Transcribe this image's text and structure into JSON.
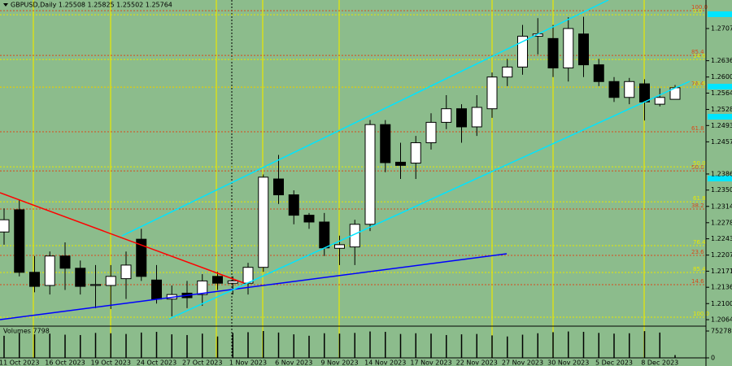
{
  "chart_data": {
    "type": "candlestick",
    "title": "GBPUSD,Daily  1.25508 1.25825 1.25502 1.25764",
    "categories": [
      null,
      "11 Oct 2023",
      null,
      null,
      "16 Oct 2023",
      null,
      null,
      "19 Oct 2023",
      null,
      null,
      "24 Oct 2023",
      null,
      null,
      "27 Oct 2023",
      null,
      null,
      "1 Nov 2023",
      null,
      null,
      "6 Nov 2023",
      null,
      null,
      "9 Nov 2023",
      null,
      null,
      "14 Nov 2023",
      null,
      null,
      "17 Nov 2023",
      null,
      null,
      "22 Nov 2023",
      null,
      null,
      "27 Nov 2023",
      null,
      null,
      "30 Nov 2023",
      null,
      null,
      "5 Dec 2023",
      null,
      null,
      "8 Dec 2023",
      null
    ],
    "open": [
      1.2258,
      1.2307,
      1.2169,
      1.214,
      1.2205,
      1.2178,
      1.214,
      1.214,
      1.2155,
      1.2242,
      1.2152,
      1.211,
      1.2123,
      1.212,
      1.216,
      1.2145,
      1.2145,
      1.218,
      1.2375,
      1.234,
      1.2295,
      1.228,
      1.2222,
      1.2225,
      1.2275,
      1.2495,
      1.2412,
      1.241,
      1.2455,
      1.25,
      1.253,
      1.249,
      1.253,
      1.26,
      1.2622,
      1.269,
      1.2685,
      1.262,
      1.2695,
      1.2627,
      1.259,
      1.2555,
      1.2585,
      1.254,
      1.25508
    ],
    "high": [
      1.231,
      1.233,
      1.2205,
      1.2215,
      1.2235,
      1.2195,
      1.2185,
      1.2185,
      1.2215,
      1.2265,
      1.2185,
      1.214,
      1.215,
      1.2165,
      1.217,
      1.216,
      1.219,
      1.2385,
      1.2428,
      1.235,
      1.23,
      1.23,
      1.225,
      1.2285,
      1.2505,
      1.2505,
      1.2455,
      1.247,
      1.252,
      1.256,
      1.254,
      1.256,
      1.261,
      1.264,
      1.2715,
      1.273,
      1.2715,
      1.2732,
      1.2733,
      1.264,
      1.26,
      1.2598,
      1.2595,
      1.2575,
      1.25825
    ],
    "low": [
      1.223,
      1.216,
      1.2125,
      1.212,
      1.213,
      1.212,
      1.209,
      1.2088,
      1.211,
      1.215,
      1.21,
      1.2072,
      1.209,
      1.2095,
      1.213,
      1.212,
      1.212,
      1.217,
      1.232,
      1.2275,
      1.2265,
      1.2205,
      1.2185,
      1.2185,
      1.226,
      1.239,
      1.2375,
      1.2375,
      1.244,
      1.2485,
      1.2455,
      1.247,
      1.251,
      1.258,
      1.2605,
      1.265,
      1.26,
      1.259,
      1.26,
      1.258,
      1.2545,
      1.254,
      1.2504,
      1.2535,
      1.25502
    ],
    "close": [
      1.2285,
      1.2169,
      1.2138,
      1.2205,
      1.2178,
      1.2138,
      1.2142,
      1.216,
      1.2185,
      1.216,
      1.211,
      1.212,
      1.2113,
      1.215,
      1.2145,
      1.215,
      1.218,
      1.2379,
      1.234,
      1.2295,
      1.228,
      1.2223,
      1.223,
      1.2275,
      1.2495,
      1.2411,
      1.2405,
      1.2455,
      1.25,
      1.253,
      1.249,
      1.2533,
      1.26,
      1.2622,
      1.269,
      1.2695,
      1.262,
      1.2707,
      1.2627,
      1.259,
      1.2555,
      1.259,
      1.2545,
      1.2555,
      1.25764
    ],
    "ylim": [
      1.2052,
      1.2761
    ],
    "yticks": [
      {
        "value": 1.2707,
        "label": "1.27070"
      },
      {
        "value": 1.2636,
        "label": "1.26360"
      },
      {
        "value": 1.26,
        "label": "1.26000"
      },
      {
        "value": 1.25645,
        "label": "1.25645"
      },
      {
        "value": 1.25285,
        "label": "1.25285"
      },
      {
        "value": 1.2493,
        "label": "1.24930"
      },
      {
        "value": 1.2457,
        "label": "1.24570"
      },
      {
        "value": 1.2386,
        "label": "1.23860"
      },
      {
        "value": 1.23505,
        "label": "1.23505"
      },
      {
        "value": 1.23145,
        "label": "1.23145"
      },
      {
        "value": 1.22785,
        "label": "1.22785"
      },
      {
        "value": 1.2243,
        "label": "1.22430"
      },
      {
        "value": 1.2207,
        "label": "1.22070"
      },
      {
        "value": 1.21715,
        "label": "1.21715"
      },
      {
        "value": 1.2136,
        "label": "1.21360"
      },
      {
        "value": 1.21,
        "label": "1.21000"
      },
      {
        "value": 1.20645,
        "label": "1.20645"
      }
    ],
    "fib_levels_red": [
      {
        "value": 1.27465,
        "label": "100.0"
      },
      {
        "value": 1.26478,
        "label": "85.4"
      },
      {
        "value": 1.25778,
        "label": "76.4"
      },
      {
        "value": 1.24791,
        "label": "61.8"
      },
      {
        "value": 1.23929,
        "label": "50.0"
      },
      {
        "value": 1.23086,
        "label": "38.2"
      },
      {
        "value": 1.22063,
        "label": "23.6"
      },
      {
        "value": 1.21417,
        "label": "14.6"
      }
    ],
    "fib_levels_yellow": [
      {
        "value": 1.27375,
        "label": "0.0"
      },
      {
        "value": 1.26388,
        "label": "14.6"
      },
      {
        "value": 1.25778,
        "label": "23.6"
      },
      {
        "value": 1.24019,
        "label": "50.0"
      },
      {
        "value": 1.23247,
        "label": "61.8"
      },
      {
        "value": 1.22278,
        "label": "76.4"
      },
      {
        "value": 1.21686,
        "label": "85.4"
      },
      {
        "value": 1.20699,
        "label": "100.0"
      }
    ],
    "volume_title": "Volumes 7798",
    "volumes": [
      62000,
      70000,
      66000,
      68000,
      65000,
      64000,
      70000,
      69000,
      67000,
      71000,
      73000,
      66000,
      64000,
      68000,
      60000,
      70000,
      72000,
      75278,
      71000,
      66000,
      62000,
      69000,
      68000,
      70000,
      74000,
      73000,
      67000,
      69000,
      68000,
      64000,
      66000,
      67000,
      63000,
      60000,
      65000,
      69000,
      72000,
      74000,
      73000,
      70000,
      68000,
      69000,
      75000,
      71000,
      7798
    ],
    "volume_ylim": [
      0,
      75278
    ],
    "volume_ticks": [
      75278,
      0
    ],
    "bull_color": "#ffffff",
    "bear_color": "#000000"
  }
}
